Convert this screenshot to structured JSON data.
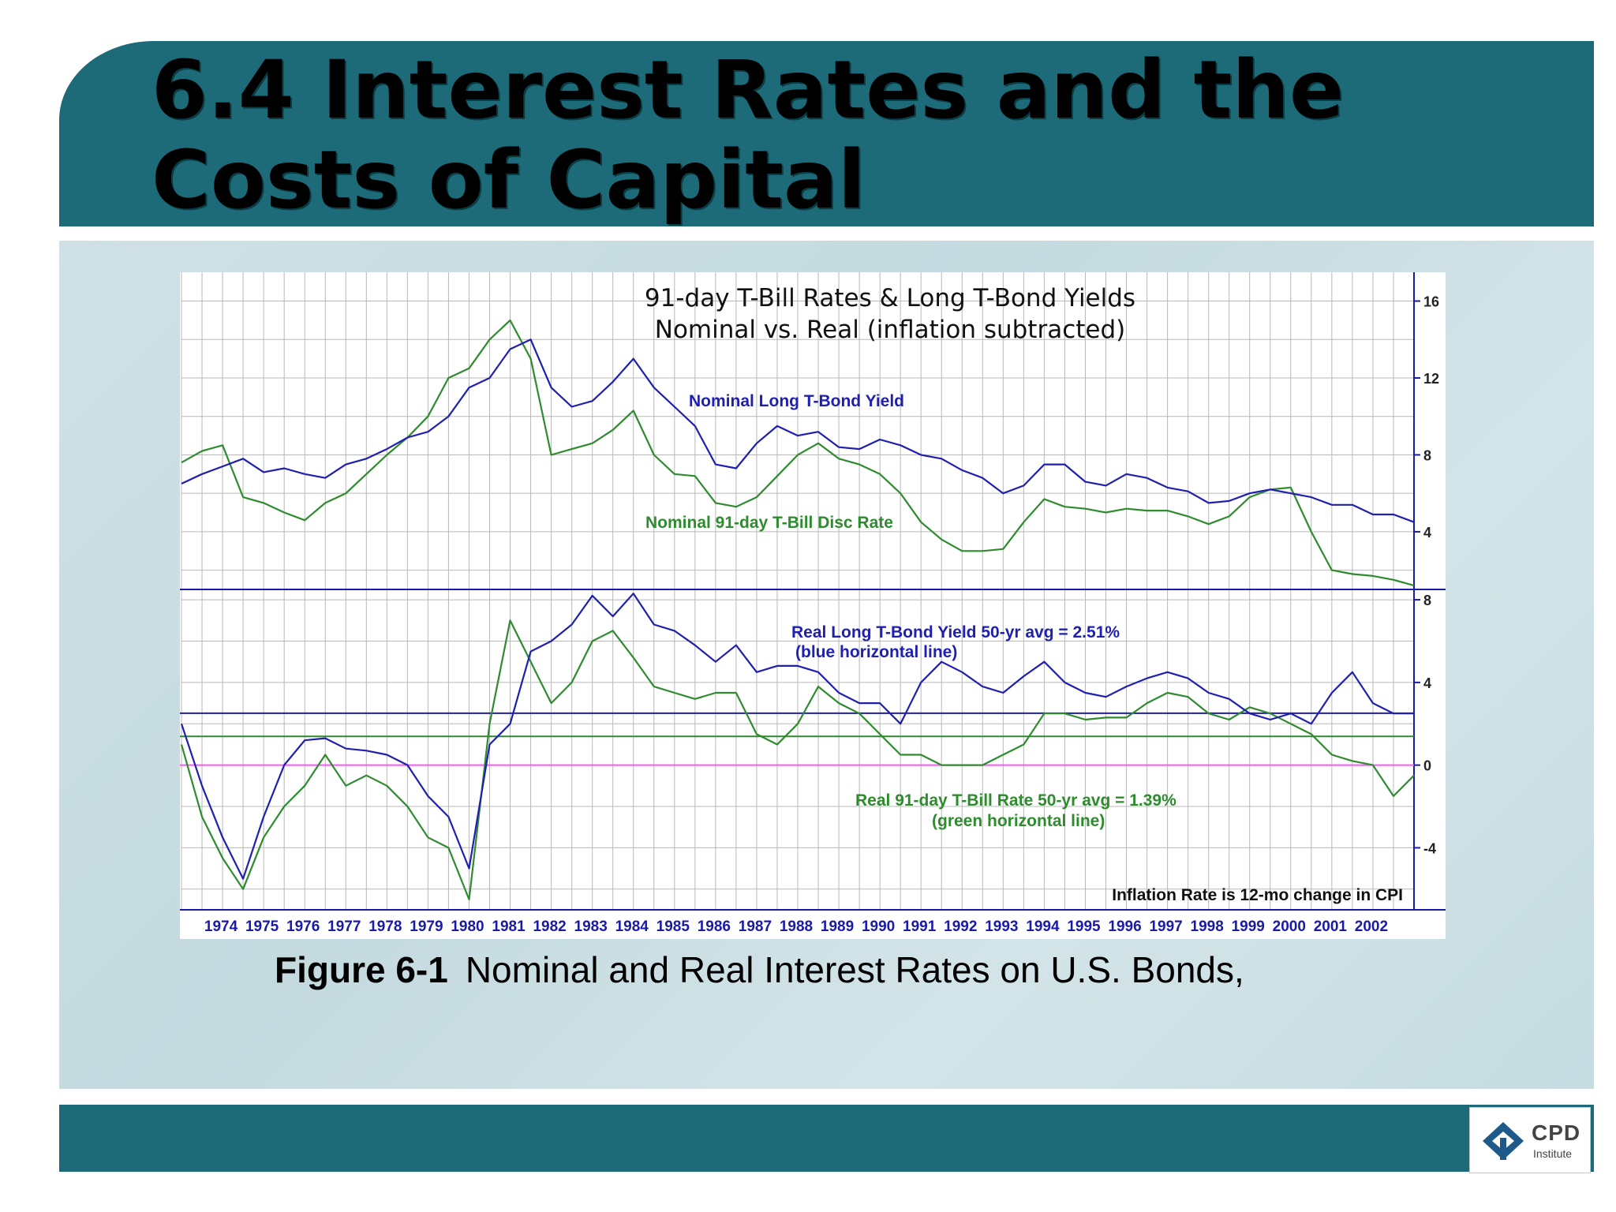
{
  "slide": {
    "title": "6.4 Interest Rates and the Costs of Capital",
    "caption_label": "Figure 6-1",
    "caption_text": "Nominal and Real Interest Rates on U.S. Bonds,",
    "logo_text": "CPD",
    "logo_subtext": "Institute"
  },
  "colors": {
    "header": "#1d6a78",
    "blue_series": "#1f1fb0",
    "green_series": "#2e8b2e",
    "zero_line": "#ff55ff",
    "grid": "#b8b8b8",
    "axis": "#1a1aa8"
  },
  "chart_data": [
    {
      "type": "line",
      "title": "91-day T-Bill Rates & Long T-Bond Yields",
      "subtitle": "Nominal vs. Real (inflation subtracted)",
      "x": [
        1973.0,
        1973.5,
        1974.0,
        1974.5,
        1975.0,
        1975.5,
        1976.0,
        1976.5,
        1977.0,
        1977.5,
        1978.0,
        1978.5,
        1979.0,
        1979.5,
        1980.0,
        1980.5,
        1981.0,
        1981.5,
        1982.0,
        1982.5,
        1983.0,
        1983.5,
        1984.0,
        1984.5,
        1985.0,
        1985.5,
        1986.0,
        1986.5,
        1987.0,
        1987.5,
        1988.0,
        1988.5,
        1989.0,
        1989.5,
        1990.0,
        1990.5,
        1991.0,
        1991.5,
        1992.0,
        1992.5,
        1993.0,
        1993.5,
        1994.0,
        1994.5,
        1995.0,
        1995.5,
        1996.0,
        1996.5,
        1997.0,
        1997.5,
        1998.0,
        1998.5,
        1999.0,
        1999.5,
        2000.0,
        2000.5,
        2001.0,
        2001.5,
        2002.0,
        2002.5,
        2003.0
      ],
      "x_tick_labels": [
        "1974",
        "1975",
        "1976",
        "1977",
        "1978",
        "1979",
        "1980",
        "1981",
        "1982",
        "1983",
        "1984",
        "1985",
        "1986",
        "1987",
        "1988",
        "1989",
        "1990",
        "1991",
        "1992",
        "1993",
        "1994",
        "1995",
        "1996",
        "1997",
        "1998",
        "1999",
        "2000",
        "2001",
        "2002"
      ],
      "y_axis_position": "right",
      "ylim": [
        1,
        17.5
      ],
      "y_ticks": [
        4,
        8,
        12,
        16
      ],
      "grid": true,
      "series": [
        {
          "name": "Nominal Long T-Bond Yield",
          "color": "#1f1fb0",
          "values": [
            6.5,
            7.0,
            7.4,
            7.8,
            7.1,
            7.3,
            7.0,
            6.8,
            7.5,
            7.8,
            8.3,
            8.9,
            9.2,
            10.0,
            11.5,
            12.0,
            13.5,
            14.0,
            11.5,
            10.5,
            10.8,
            11.8,
            13.0,
            11.5,
            10.5,
            9.5,
            7.5,
            7.3,
            8.6,
            9.5,
            9.0,
            9.2,
            8.4,
            8.3,
            8.8,
            8.5,
            8.0,
            7.8,
            7.2,
            6.8,
            6.0,
            6.4,
            7.5,
            7.5,
            6.6,
            6.4,
            7.0,
            6.8,
            6.3,
            6.1,
            5.5,
            5.6,
            6.0,
            6.2,
            6.0,
            5.8,
            5.4,
            5.4,
            4.9,
            4.9,
            4.5
          ]
        },
        {
          "name": "Nominal 91-day T-Bill Disc Rate",
          "color": "#2e8b2e",
          "values": [
            7.6,
            8.2,
            8.5,
            5.8,
            5.5,
            5.0,
            4.6,
            5.5,
            6.0,
            7.0,
            8.0,
            8.9,
            10.0,
            12.0,
            12.5,
            14.0,
            15.0,
            13.0,
            8.0,
            8.3,
            8.6,
            9.3,
            10.3,
            8.0,
            7.0,
            6.9,
            5.5,
            5.3,
            5.8,
            6.9,
            8.0,
            8.6,
            7.8,
            7.5,
            7.0,
            6.0,
            4.5,
            3.6,
            3.0,
            3.0,
            3.1,
            4.5,
            5.7,
            5.3,
            5.2,
            5.0,
            5.2,
            5.1,
            5.1,
            4.8,
            4.4,
            4.8,
            5.8,
            6.2,
            6.3,
            4.0,
            2.0,
            1.8,
            1.7,
            1.5,
            1.2
          ]
        }
      ]
    },
    {
      "type": "line",
      "y_axis_position": "right",
      "ylim": [
        -7,
        8.5
      ],
      "y_ticks": [
        -4,
        0,
        4,
        8
      ],
      "grid": true,
      "series": [
        {
          "name": "Real Long T-Bond Yield",
          "color": "#1f1fb0",
          "values": [
            2.0,
            -1.0,
            -3.5,
            -5.5,
            -2.5,
            0.0,
            1.2,
            1.3,
            0.8,
            0.7,
            0.5,
            0.0,
            -1.5,
            -2.5,
            -5.0,
            1.0,
            2.0,
            5.5,
            6.0,
            6.8,
            8.2,
            7.2,
            8.3,
            6.8,
            6.5,
            5.8,
            5.0,
            5.8,
            4.5,
            4.8,
            4.8,
            4.5,
            3.5,
            3.0,
            3.0,
            2.0,
            4.0,
            5.0,
            4.5,
            3.8,
            3.5,
            4.3,
            5.0,
            4.0,
            3.5,
            3.3,
            3.8,
            4.2,
            4.5,
            4.2,
            3.5,
            3.2,
            2.5,
            2.2,
            2.5,
            2.0,
            3.5,
            4.5,
            3.0,
            2.5,
            2.5
          ]
        },
        {
          "name": "Real 91-day T-Bill Rate",
          "color": "#2e8b2e",
          "values": [
            1.0,
            -2.5,
            -4.5,
            -6.0,
            -3.5,
            -2.0,
            -1.0,
            0.5,
            -1.0,
            -0.5,
            -1.0,
            -2.0,
            -3.5,
            -4.0,
            -6.5,
            2.0,
            7.0,
            5.0,
            3.0,
            4.0,
            6.0,
            6.5,
            5.2,
            3.8,
            3.5,
            3.2,
            3.5,
            3.5,
            1.5,
            1.0,
            2.0,
            3.8,
            3.0,
            2.5,
            1.5,
            0.5,
            0.5,
            0.0,
            0.0,
            0.0,
            0.5,
            1.0,
            2.5,
            2.5,
            2.2,
            2.3,
            2.3,
            3.0,
            3.5,
            3.3,
            2.5,
            2.2,
            2.8,
            2.5,
            2.0,
            1.5,
            0.5,
            0.2,
            0.0,
            -1.5,
            -0.5
          ]
        }
      ],
      "reference_lines": [
        {
          "label": "Real Long T-Bond Yield 50-yr avg = 2.51%",
          "note": "(blue horizontal line)",
          "value": 2.51,
          "color": "#1f1fb0"
        },
        {
          "label": "Real 91-day T-Bill Rate 50-yr avg = 1.39%",
          "note": "(green horizontal line)",
          "value": 1.39,
          "color": "#2e8b2e"
        },
        {
          "value": 0,
          "color": "#ff55ff"
        }
      ],
      "footnote": "Inflation Rate is 12-mo change in CPI"
    }
  ]
}
